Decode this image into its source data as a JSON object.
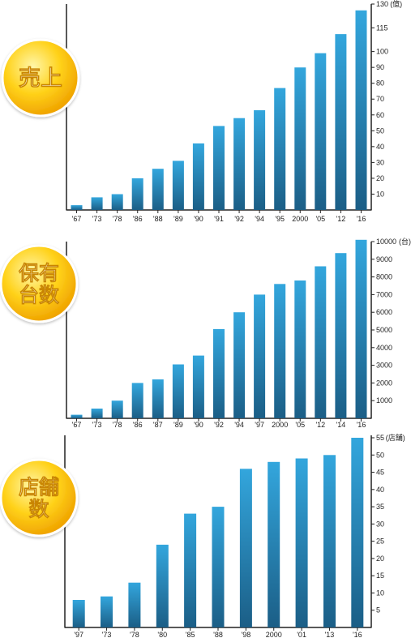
{
  "colors": {
    "bar_top": "#33a6dd",
    "bar_bottom": "#1b5e86",
    "axis": "#222222",
    "badge_light": "#fff6a8",
    "badge_mid": "#ffd21a",
    "badge_dark": "#f0a400"
  },
  "chart_data": [
    {
      "type": "bar",
      "title": "売上",
      "badge_lines": [
        "売上"
      ],
      "categories": [
        "'67",
        "'73",
        "'78",
        "'86",
        "'88",
        "'89",
        "'90",
        "'91",
        "'92",
        "'94",
        "'95",
        "2000",
        "'05",
        "'12",
        "'16"
      ],
      "values": [
        3,
        8,
        10,
        20,
        26,
        31,
        42,
        53,
        58,
        63,
        77,
        90,
        99,
        111,
        126
      ],
      "ylim": [
        0,
        130
      ],
      "yticks": [
        10,
        20,
        30,
        40,
        50,
        60,
        70,
        80,
        90,
        100,
        115,
        130
      ],
      "ytick_labels": [
        "10",
        "20",
        "30",
        "40",
        "50",
        "60",
        "70",
        "80",
        "90",
        "100",
        "115",
        "130"
      ],
      "y_unit": "(億)",
      "grid": false
    },
    {
      "type": "bar",
      "title": "保有台数",
      "badge_lines": [
        "保有",
        "台数"
      ],
      "categories": [
        "'67",
        "'73",
        "'78",
        "'86",
        "'87",
        "'89",
        "'90",
        "'92",
        "'94",
        "'97",
        "2000",
        "'05",
        "'12",
        "'14",
        "'16"
      ],
      "values": [
        200,
        550,
        1000,
        2000,
        2200,
        3050,
        3550,
        5050,
        6000,
        7000,
        7600,
        7800,
        8600,
        9350,
        10100
      ],
      "ylim": [
        0,
        10000
      ],
      "yticks": [
        1000,
        2000,
        3000,
        4000,
        5000,
        6000,
        7000,
        8000,
        9000,
        10000
      ],
      "ytick_labels": [
        "1000",
        "2000",
        "3000",
        "4000",
        "5000",
        "6000",
        "7000",
        "8000",
        "9000",
        "10000"
      ],
      "y_unit": "(台)",
      "grid": false
    },
    {
      "type": "bar",
      "title": "店舗数",
      "badge_lines": [
        "店舗",
        "数"
      ],
      "categories": [
        "'97",
        "'73",
        "'78",
        "'80",
        "'85",
        "'88",
        "'98",
        "2000",
        "'01",
        "'13",
        "'16"
      ],
      "values": [
        8,
        9,
        13,
        24,
        33,
        35,
        46,
        48,
        49,
        50,
        55
      ],
      "ylim": [
        0,
        55
      ],
      "yticks": [
        5,
        10,
        15,
        20,
        25,
        30,
        35,
        40,
        45,
        50,
        55
      ],
      "ytick_labels": [
        "5",
        "10",
        "15",
        "20",
        "25",
        "30",
        "35",
        "40",
        "45",
        "50",
        "55"
      ],
      "y_unit": "(店舗)",
      "grid": false
    }
  ]
}
